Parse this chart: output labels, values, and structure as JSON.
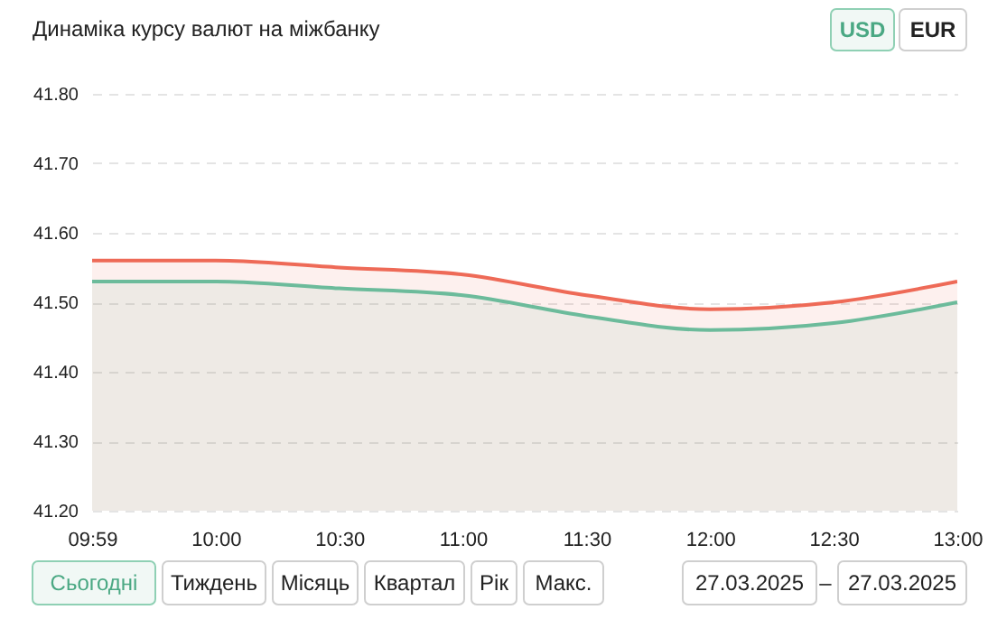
{
  "chart_data": {
    "type": "area",
    "title": "Динаміка курсу валют на міжбанку",
    "categories": [
      "09:59",
      "10:00",
      "10:30",
      "11:00",
      "11:30",
      "12:00",
      "12:30",
      "13:00"
    ],
    "series": [
      {
        "color": "#ee6a57",
        "values": [
          41.56,
          41.56,
          41.55,
          41.54,
          41.51,
          41.49,
          41.5,
          41.53
        ]
      },
      {
        "color": "#6cbb9b",
        "values": [
          41.53,
          41.53,
          41.52,
          41.51,
          41.48,
          41.46,
          41.47,
          41.5
        ]
      }
    ],
    "ylim": [
      41.2,
      41.8
    ],
    "yticks": [
      {
        "value": 41.2,
        "label": "41.20"
      },
      {
        "value": 41.3,
        "label": "41.30"
      },
      {
        "value": 41.4,
        "label": "41.40"
      },
      {
        "value": 41.5,
        "label": "41.50"
      },
      {
        "value": 41.6,
        "label": "41.60"
      },
      {
        "value": 41.7,
        "label": "41.70"
      },
      {
        "value": 41.8,
        "label": "41.80"
      }
    ],
    "grid": "y",
    "marker": "none",
    "line_style": "solid",
    "annotations": [
      "USD",
      "EUR",
      "Сьогодні",
      "Тиждень",
      "Місяць",
      "Квартал",
      "Рік",
      "Макс.",
      "27.03.2025",
      "–",
      "27.03.2025"
    ]
  }
}
